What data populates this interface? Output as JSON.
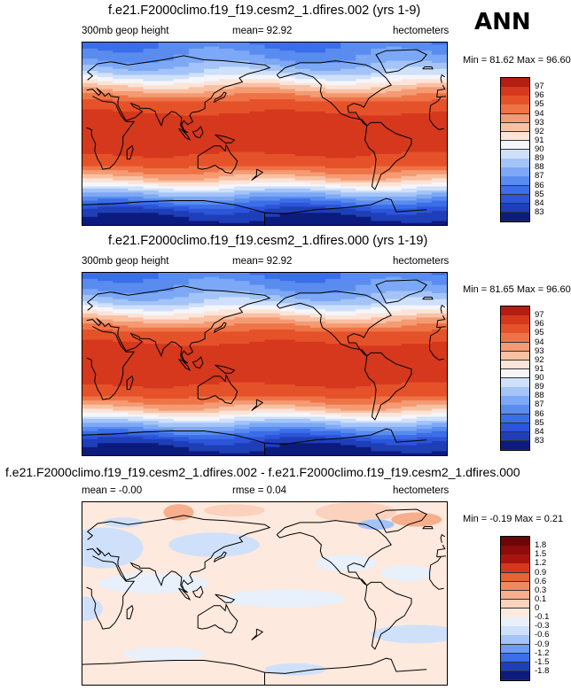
{
  "season": "ANN",
  "colors": {
    "abs_scale": [
      "#0c1b7e",
      "#1e3fb8",
      "#2c55d9",
      "#3b6ee8",
      "#5a8cf0",
      "#7ca8f5",
      "#a4c4f8",
      "#cfe0fb",
      "#f4f6fb",
      "#fde4d8",
      "#f9c1a4",
      "#f49b74",
      "#ee7447",
      "#e5522a",
      "#d5381d",
      "#b21e12",
      "#8e0b0b"
    ],
    "diff_scale": [
      "#0c1b7e",
      "#1e3fb8",
      "#3b6ee8",
      "#6e9bf3",
      "#a4c4f8",
      "#cfe0fb",
      "#e8f0fc",
      "#fde9dd",
      "#fbd2bd",
      "#f6ae8c",
      "#f08a5f",
      "#e66538",
      "#d5381d",
      "#a81510"
    ]
  },
  "panels": [
    {
      "title": "f.e21.F2000climo.f19_f19.cesm2_1.dfires.002 (yrs 1-9)",
      "left_label": "300mb geop height",
      "center_label": "mean=  92.92",
      "right_label": "hectometers",
      "minmax": "Min =  81.62 Max =  96.60",
      "colorbar_labels": [
        "97",
        "96",
        "95",
        "94",
        "93",
        "92",
        "91",
        "90",
        "89",
        "88",
        "87",
        "86",
        "85",
        "84",
        "83"
      ]
    },
    {
      "title": "f.e21.F2000climo.f19_f19.cesm2_1.dfires.000 (yrs 1-19)",
      "left_label": "300mb geop height",
      "center_label": "mean=  92.92",
      "right_label": "hectometers",
      "minmax": "Min =  81.65 Max =  96.60",
      "colorbar_labels": [
        "97",
        "96",
        "95",
        "94",
        "93",
        "92",
        "91",
        "90",
        "89",
        "88",
        "87",
        "86",
        "85",
        "84",
        "83"
      ]
    },
    {
      "title": "f.e21.F2000climo.f19_f19.cesm2_1.dfires.002 - f.e21.F2000climo.f19_f19.cesm2_1.dfires.000",
      "left_label": "mean =  -0.00",
      "center_label": "rmse =  0.04",
      "right_label": "hectometers",
      "minmax": "Min =  -0.19 Max =   0.21",
      "colorbar_labels": [
        "1.8",
        "1.5",
        "1.2",
        "0.9",
        "0.6",
        "0.3",
        "0.1",
        "0",
        "-0.1",
        "-0.3",
        "-0.6",
        "-0.9",
        "-1.2",
        "-1.5",
        "-1.8"
      ]
    }
  ],
  "chart_data": [
    {
      "type": "heatmap",
      "title": "f.e21.F2000climo.f19_f19.cesm2_1.dfires.002 (yrs 1-9)",
      "variable": "300mb geop height",
      "units": "hectometers",
      "mean": 92.92,
      "min": 81.62,
      "max": 96.6,
      "contour_levels": [
        83,
        84,
        85,
        86,
        87,
        88,
        89,
        90,
        91,
        92,
        93,
        94,
        95,
        96,
        97
      ],
      "zonal_profile": {
        "lat": [
          90,
          75,
          60,
          45,
          30,
          15,
          0,
          -15,
          -30,
          -45,
          -60,
          -75,
          -90
        ],
        "values": [
          86,
          87,
          89,
          92.5,
          95.5,
          96.3,
          96.5,
          96.3,
          95.5,
          92.5,
          88,
          84,
          82
        ]
      }
    },
    {
      "type": "heatmap",
      "title": "f.e21.F2000climo.f19_f19.cesm2_1.dfires.000 (yrs 1-19)",
      "variable": "300mb geop height",
      "units": "hectometers",
      "mean": 92.92,
      "min": 81.65,
      "max": 96.6,
      "contour_levels": [
        83,
        84,
        85,
        86,
        87,
        88,
        89,
        90,
        91,
        92,
        93,
        94,
        95,
        96,
        97
      ],
      "zonal_profile": {
        "lat": [
          90,
          75,
          60,
          45,
          30,
          15,
          0,
          -15,
          -30,
          -45,
          -60,
          -75,
          -90
        ],
        "values": [
          86,
          87,
          89,
          92.5,
          95.5,
          96.3,
          96.5,
          96.3,
          95.5,
          92.5,
          88,
          84,
          82
        ]
      }
    },
    {
      "type": "heatmap",
      "title": "f.e21.F2000climo.f19_f19.cesm2_1.dfires.002 - f.e21.F2000climo.f19_f19.cesm2_1.dfires.000",
      "units": "hectometers",
      "mean": -0.0,
      "rmse": 0.04,
      "min": -0.19,
      "max": 0.21,
      "contour_levels": [
        -1.8,
        -1.5,
        -1.2,
        -0.9,
        -0.6,
        -0.3,
        -0.1,
        0,
        0.1,
        0.3,
        0.6,
        0.9,
        1.2,
        1.5,
        1.8
      ]
    }
  ]
}
